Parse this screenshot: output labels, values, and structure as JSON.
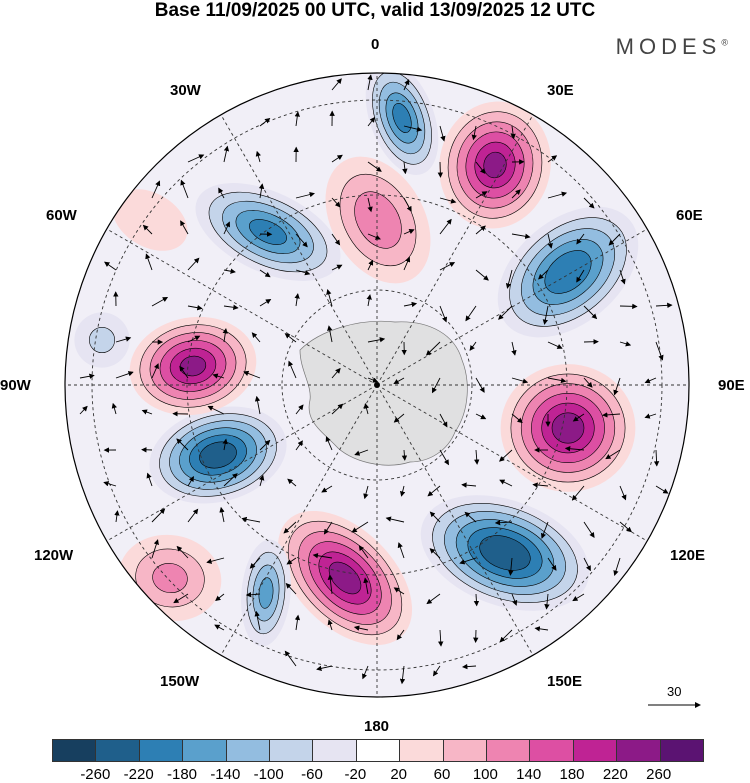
{
  "title": "Base 11/09/2025 00 UTC, valid 13/09/2025 12 UTC",
  "brand": "MODES",
  "brand_mark": "®",
  "longitude_labels": {
    "lon_0": "0",
    "lon_30e": "30E",
    "lon_60e": "60E",
    "lon_90e": "90E",
    "lon_120e": "120E",
    "lon_150e": "150E",
    "lon_180": "180",
    "lon_150w": "150W",
    "lon_120w": "120W",
    "lon_90w": "90W",
    "lon_60w": "60W",
    "lon_30w": "30W"
  },
  "reference_vector": {
    "label": "30"
  },
  "colorbar": {
    "ticks": [
      "-260",
      "-220",
      "-180",
      "-140",
      "-100",
      "-60",
      "-20",
      "20",
      "60",
      "100",
      "140",
      "180",
      "220",
      "260"
    ],
    "colors": [
      "#173f5f",
      "#1f5f8b",
      "#2d7fb4",
      "#5aa0cc",
      "#93bde0",
      "#c4d4ea",
      "#e6e4f2",
      "#ffffff",
      "#fbdada",
      "#f7b6c6",
      "#ee84b1",
      "#dd4fa3",
      "#bf2394",
      "#8c1a87",
      "#5b1372"
    ]
  },
  "map": {
    "projection": "south polar stereographic",
    "anomaly_centers": [
      {
        "name": "low-0-north",
        "value": -200
      },
      {
        "name": "high-30e",
        "value": 230
      },
      {
        "name": "low-60e",
        "value": -220
      },
      {
        "name": "high-90e",
        "value": 240
      },
      {
        "name": "low-135e",
        "value": -260
      },
      {
        "name": "high-160e",
        "value": 240
      },
      {
        "name": "low-155w",
        "value": -160
      },
      {
        "name": "high-135w",
        "value": 120
      },
      {
        "name": "low-105w",
        "value": -250
      },
      {
        "name": "high-80w",
        "value": 230
      },
      {
        "name": "low-90w-edge",
        "value": -80
      },
      {
        "name": "low-40w",
        "value": -200
      },
      {
        "name": "high-10w",
        "value": 140
      },
      {
        "name": "high-55w",
        "value": 60
      }
    ]
  }
}
